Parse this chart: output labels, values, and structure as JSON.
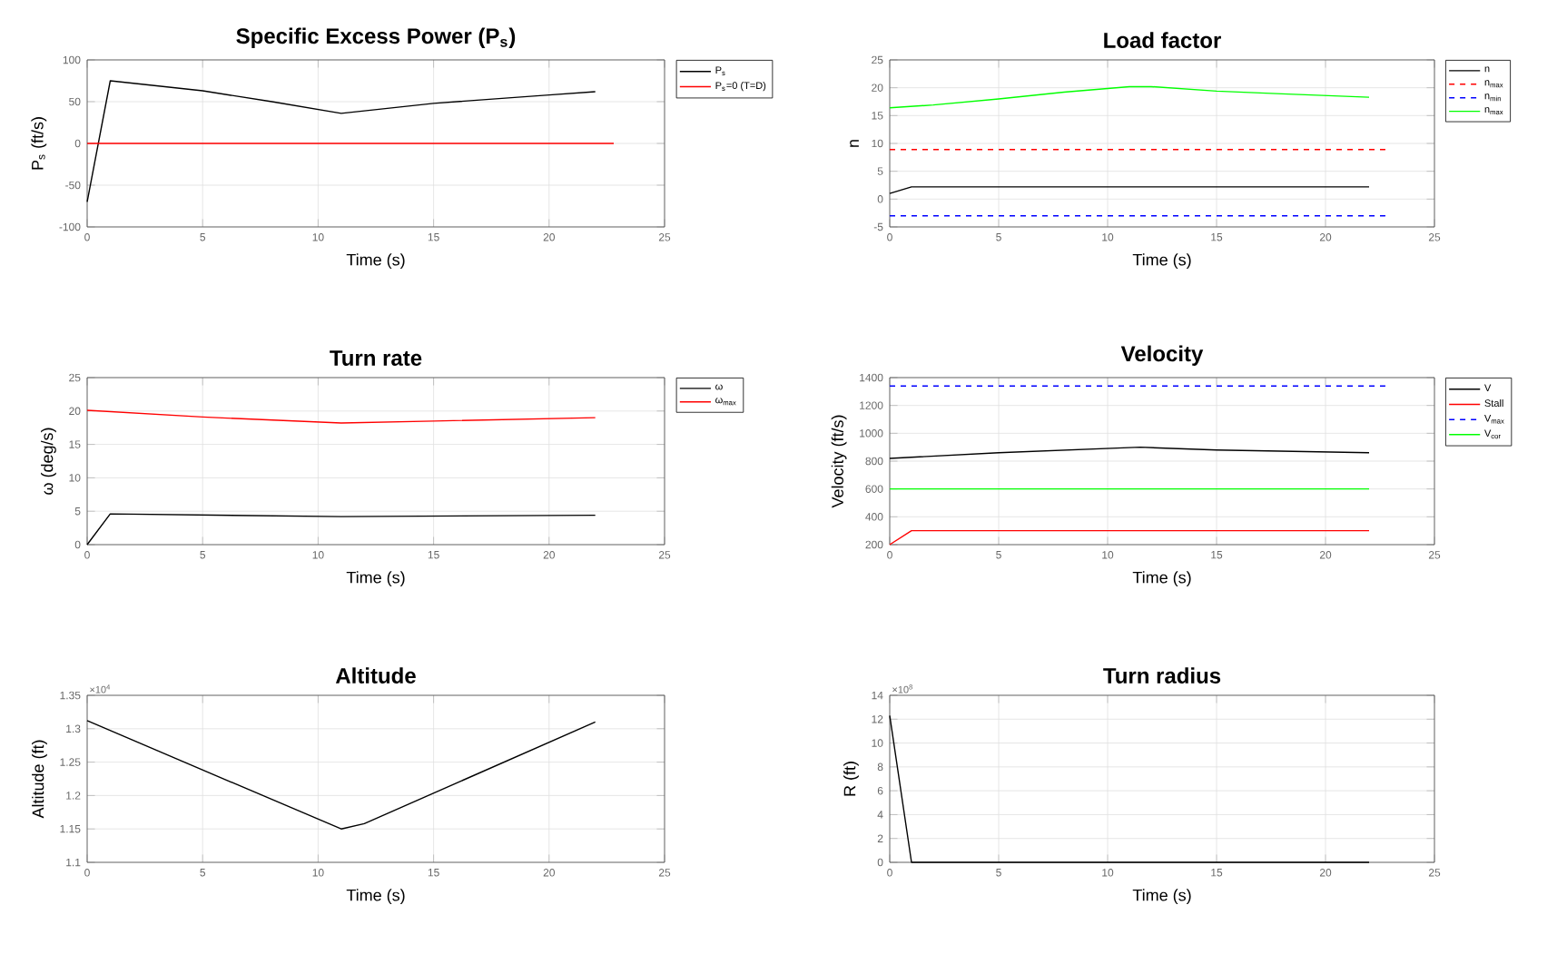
{
  "chart_data": [
    {
      "type": "line",
      "title": "Specific Excess Power (P$_{s}$)",
      "xlabel": "Time (s)",
      "ylabel": "P$_{s}$ (ft/s)",
      "xlim": [
        0,
        25
      ],
      "ylim": [
        -100,
        100
      ],
      "xticks": [
        0,
        5,
        10,
        15,
        20,
        25
      ],
      "yticks": [
        -100,
        -50,
        0,
        50,
        100
      ],
      "grid": true,
      "legend": "right",
      "series": [
        {
          "name": "P$_{s}$",
          "color": "#000000",
          "x": [
            0,
            1,
            5,
            8,
            11,
            15,
            20,
            22
          ],
          "values": [
            -70,
            75,
            63,
            50,
            36,
            48,
            58,
            62
          ]
        },
        {
          "name": "P$_{s}$=0 (T=D)",
          "color": "#ff0000",
          "x": [
            0,
            22.8
          ],
          "values": [
            0,
            0
          ]
        }
      ]
    },
    {
      "type": "line",
      "title": "Load factor",
      "xlabel": "Time (s)",
      "ylabel": "n",
      "xlim": [
        0,
        25
      ],
      "ylim": [
        -5,
        25
      ],
      "xticks": [
        0,
        5,
        10,
        15,
        20,
        25
      ],
      "yticks": [
        -5,
        0,
        5,
        10,
        15,
        20,
        25
      ],
      "grid": true,
      "legend": "right",
      "series": [
        {
          "name": "n",
          "color": "#000000",
          "x": [
            0,
            1,
            22
          ],
          "values": [
            1,
            2.2,
            2.2
          ]
        },
        {
          "name": "n$_{max}$",
          "color": "#ff0000",
          "line_style": "dashed",
          "x": [
            0,
            22.8
          ],
          "values": [
            8.9,
            8.9
          ]
        },
        {
          "name": "n$_{min}$",
          "color": "#0000ff",
          "line_style": "dashed",
          "x": [
            0,
            22.8
          ],
          "values": [
            -3,
            -3
          ]
        },
        {
          "name": "n$_{max}$",
          "color": "#00ff00",
          "x": [
            0,
            2,
            5,
            8,
            11,
            12,
            15,
            18,
            22
          ],
          "values": [
            16.4,
            16.9,
            18,
            19.2,
            20.2,
            20.2,
            19.4,
            18.9,
            18.3
          ]
        }
      ]
    },
    {
      "type": "line",
      "title": "Turn rate",
      "xlabel": "Time (s)",
      "ylabel": "ω (deg/s)",
      "xlim": [
        0,
        25
      ],
      "ylim": [
        0,
        25
      ],
      "xticks": [
        0,
        5,
        10,
        15,
        20,
        25
      ],
      "yticks": [
        0,
        5,
        10,
        15,
        20,
        25
      ],
      "grid": true,
      "legend": "right",
      "series": [
        {
          "name": "ω",
          "color": "#000000",
          "x": [
            0,
            1,
            11,
            22
          ],
          "values": [
            0,
            4.6,
            4.2,
            4.4
          ]
        },
        {
          "name": "ω$_{max}$",
          "color": "#ff0000",
          "x": [
            0,
            5,
            11,
            15,
            22
          ],
          "values": [
            20.1,
            19.1,
            18.2,
            18.5,
            19
          ]
        }
      ]
    },
    {
      "type": "line",
      "title": "Velocity",
      "xlabel": "Time (s)",
      "ylabel": "Velocity (ft/s)",
      "xlim": [
        0,
        25
      ],
      "ylim": [
        200,
        1400
      ],
      "xticks": [
        0,
        5,
        10,
        15,
        20,
        25
      ],
      "yticks": [
        200,
        400,
        600,
        800,
        1000,
        1200,
        1400
      ],
      "grid": true,
      "legend": "right",
      "series": [
        {
          "name": "V",
          "color": "#000000",
          "x": [
            0,
            5,
            11.5,
            15,
            22
          ],
          "values": [
            820,
            860,
            900,
            880,
            860
          ]
        },
        {
          "name": "Stall",
          "color": "#ff0000",
          "x": [
            0,
            1,
            22
          ],
          "values": [
            200,
            300,
            300
          ]
        },
        {
          "name": "V$_{max}$",
          "color": "#0000ff",
          "line_style": "dashed",
          "x": [
            0,
            22.8
          ],
          "values": [
            1340,
            1340
          ]
        },
        {
          "name": "V$_{cor}$",
          "color": "#00ff00",
          "x": [
            0,
            22
          ],
          "values": [
            600,
            600
          ]
        }
      ]
    },
    {
      "type": "line",
      "title": "Altitude",
      "xlabel": "Time (s)",
      "ylabel": "Altitude (ft)",
      "annotations": [
        "×10$^{4}$"
      ],
      "xlim": [
        0,
        25
      ],
      "ylim": [
        1.1,
        1.35
      ],
      "xticks": [
        0,
        5,
        10,
        15,
        20,
        25
      ],
      "yticks": [
        1.1,
        1.15,
        1.2,
        1.25,
        1.3,
        1.35
      ],
      "grid": true,
      "series": [
        {
          "color": "#000000",
          "x": [
            0,
            11,
            12,
            22
          ],
          "values": [
            1.312,
            1.15,
            1.158,
            1.31
          ]
        }
      ]
    },
    {
      "type": "line",
      "title": "Turn radius",
      "xlabel": "Time (s)",
      "ylabel": "R (ft)",
      "annotations": [
        "×10$^{8}$"
      ],
      "xlim": [
        0,
        25
      ],
      "ylim": [
        0,
        14
      ],
      "xticks": [
        0,
        5,
        10,
        15,
        20,
        25
      ],
      "yticks": [
        0,
        2,
        4,
        6,
        8,
        10,
        12,
        14
      ],
      "grid": true,
      "series": [
        {
          "color": "#000000",
          "x": [
            0,
            1,
            22
          ],
          "values": [
            12.3,
            0,
            0
          ]
        }
      ]
    }
  ]
}
